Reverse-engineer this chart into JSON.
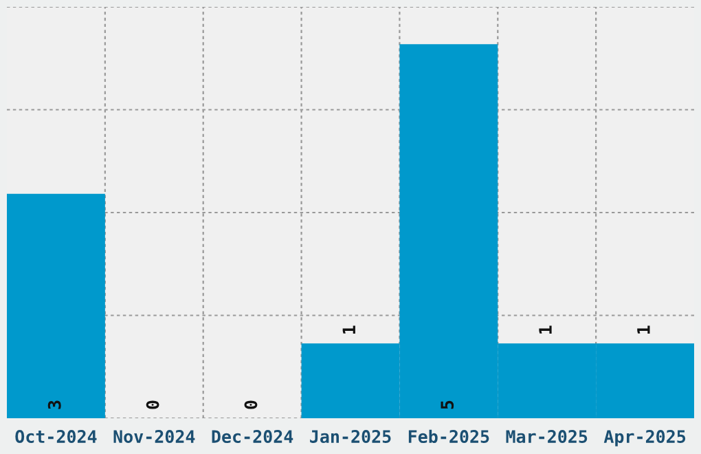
{
  "chart_data": {
    "type": "bar",
    "categories": [
      "Oct-2024",
      "Nov-2024",
      "Dec-2024",
      "Jan-2025",
      "Feb-2025",
      "Mar-2025",
      "Apr-2025"
    ],
    "values": [
      3,
      0,
      0,
      1,
      5,
      1,
      1
    ],
    "color": "#0099cc",
    "data_labels": true,
    "ylim": [
      0,
      5.5
    ],
    "yticks": [
      {
        "value": 0,
        "label": null
      },
      {
        "value": 1.375,
        "label": null
      },
      {
        "value": 2.75,
        "label": null
      },
      {
        "value": 4.125,
        "label": null
      },
      {
        "value": 5.5,
        "label": null
      }
    ],
    "grid": true,
    "tick_labels": "x"
  }
}
